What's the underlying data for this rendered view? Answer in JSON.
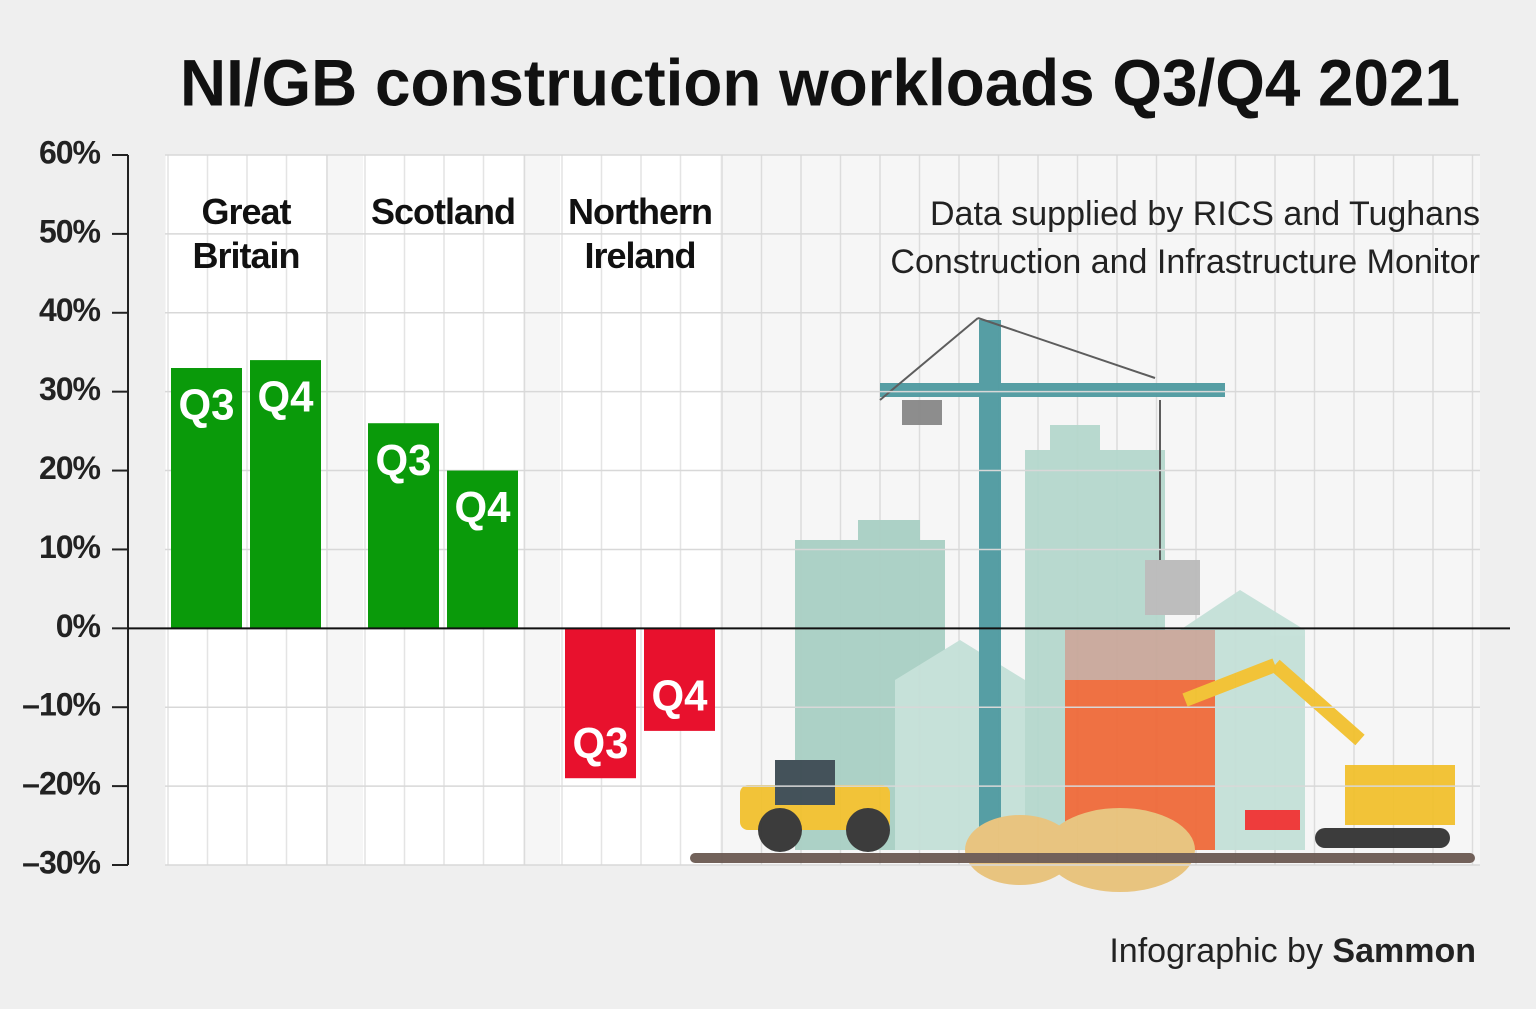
{
  "chart_data": {
    "type": "bar",
    "title": "NI/GB construction workloads Q3/Q4 2021",
    "source": "Data supplied by RICS and Tughans Construction and Infrastructure Monitor",
    "credit": "Infographic by",
    "credit_name": "Sammon",
    "categories": [
      "Great Britain",
      "Scotland",
      "Northern Ireland"
    ],
    "series": [
      {
        "name": "Q3",
        "color": "#0a9a0a",
        "negative_color": "#e8112d",
        "values": [
          33,
          26,
          -19
        ]
      },
      {
        "name": "Q4",
        "color": "#0a9a0a",
        "negative_color": "#e8112d",
        "values": [
          34,
          20,
          -13
        ]
      }
    ],
    "ylim": [
      -30,
      60
    ],
    "yticks": [
      {
        "value": -30,
        "label": "–30%"
      },
      {
        "value": -20,
        "label": "–20%"
      },
      {
        "value": -10,
        "label": "–10%"
      },
      {
        "value": 0,
        "label": "0%"
      },
      {
        "value": 10,
        "label": "10%"
      },
      {
        "value": 20,
        "label": "20%"
      },
      {
        "value": 30,
        "label": "30%"
      },
      {
        "value": 40,
        "label": "40%"
      },
      {
        "value": 50,
        "label": "50%"
      },
      {
        "value": 60,
        "label": "60%"
      }
    ],
    "grid": true
  }
}
